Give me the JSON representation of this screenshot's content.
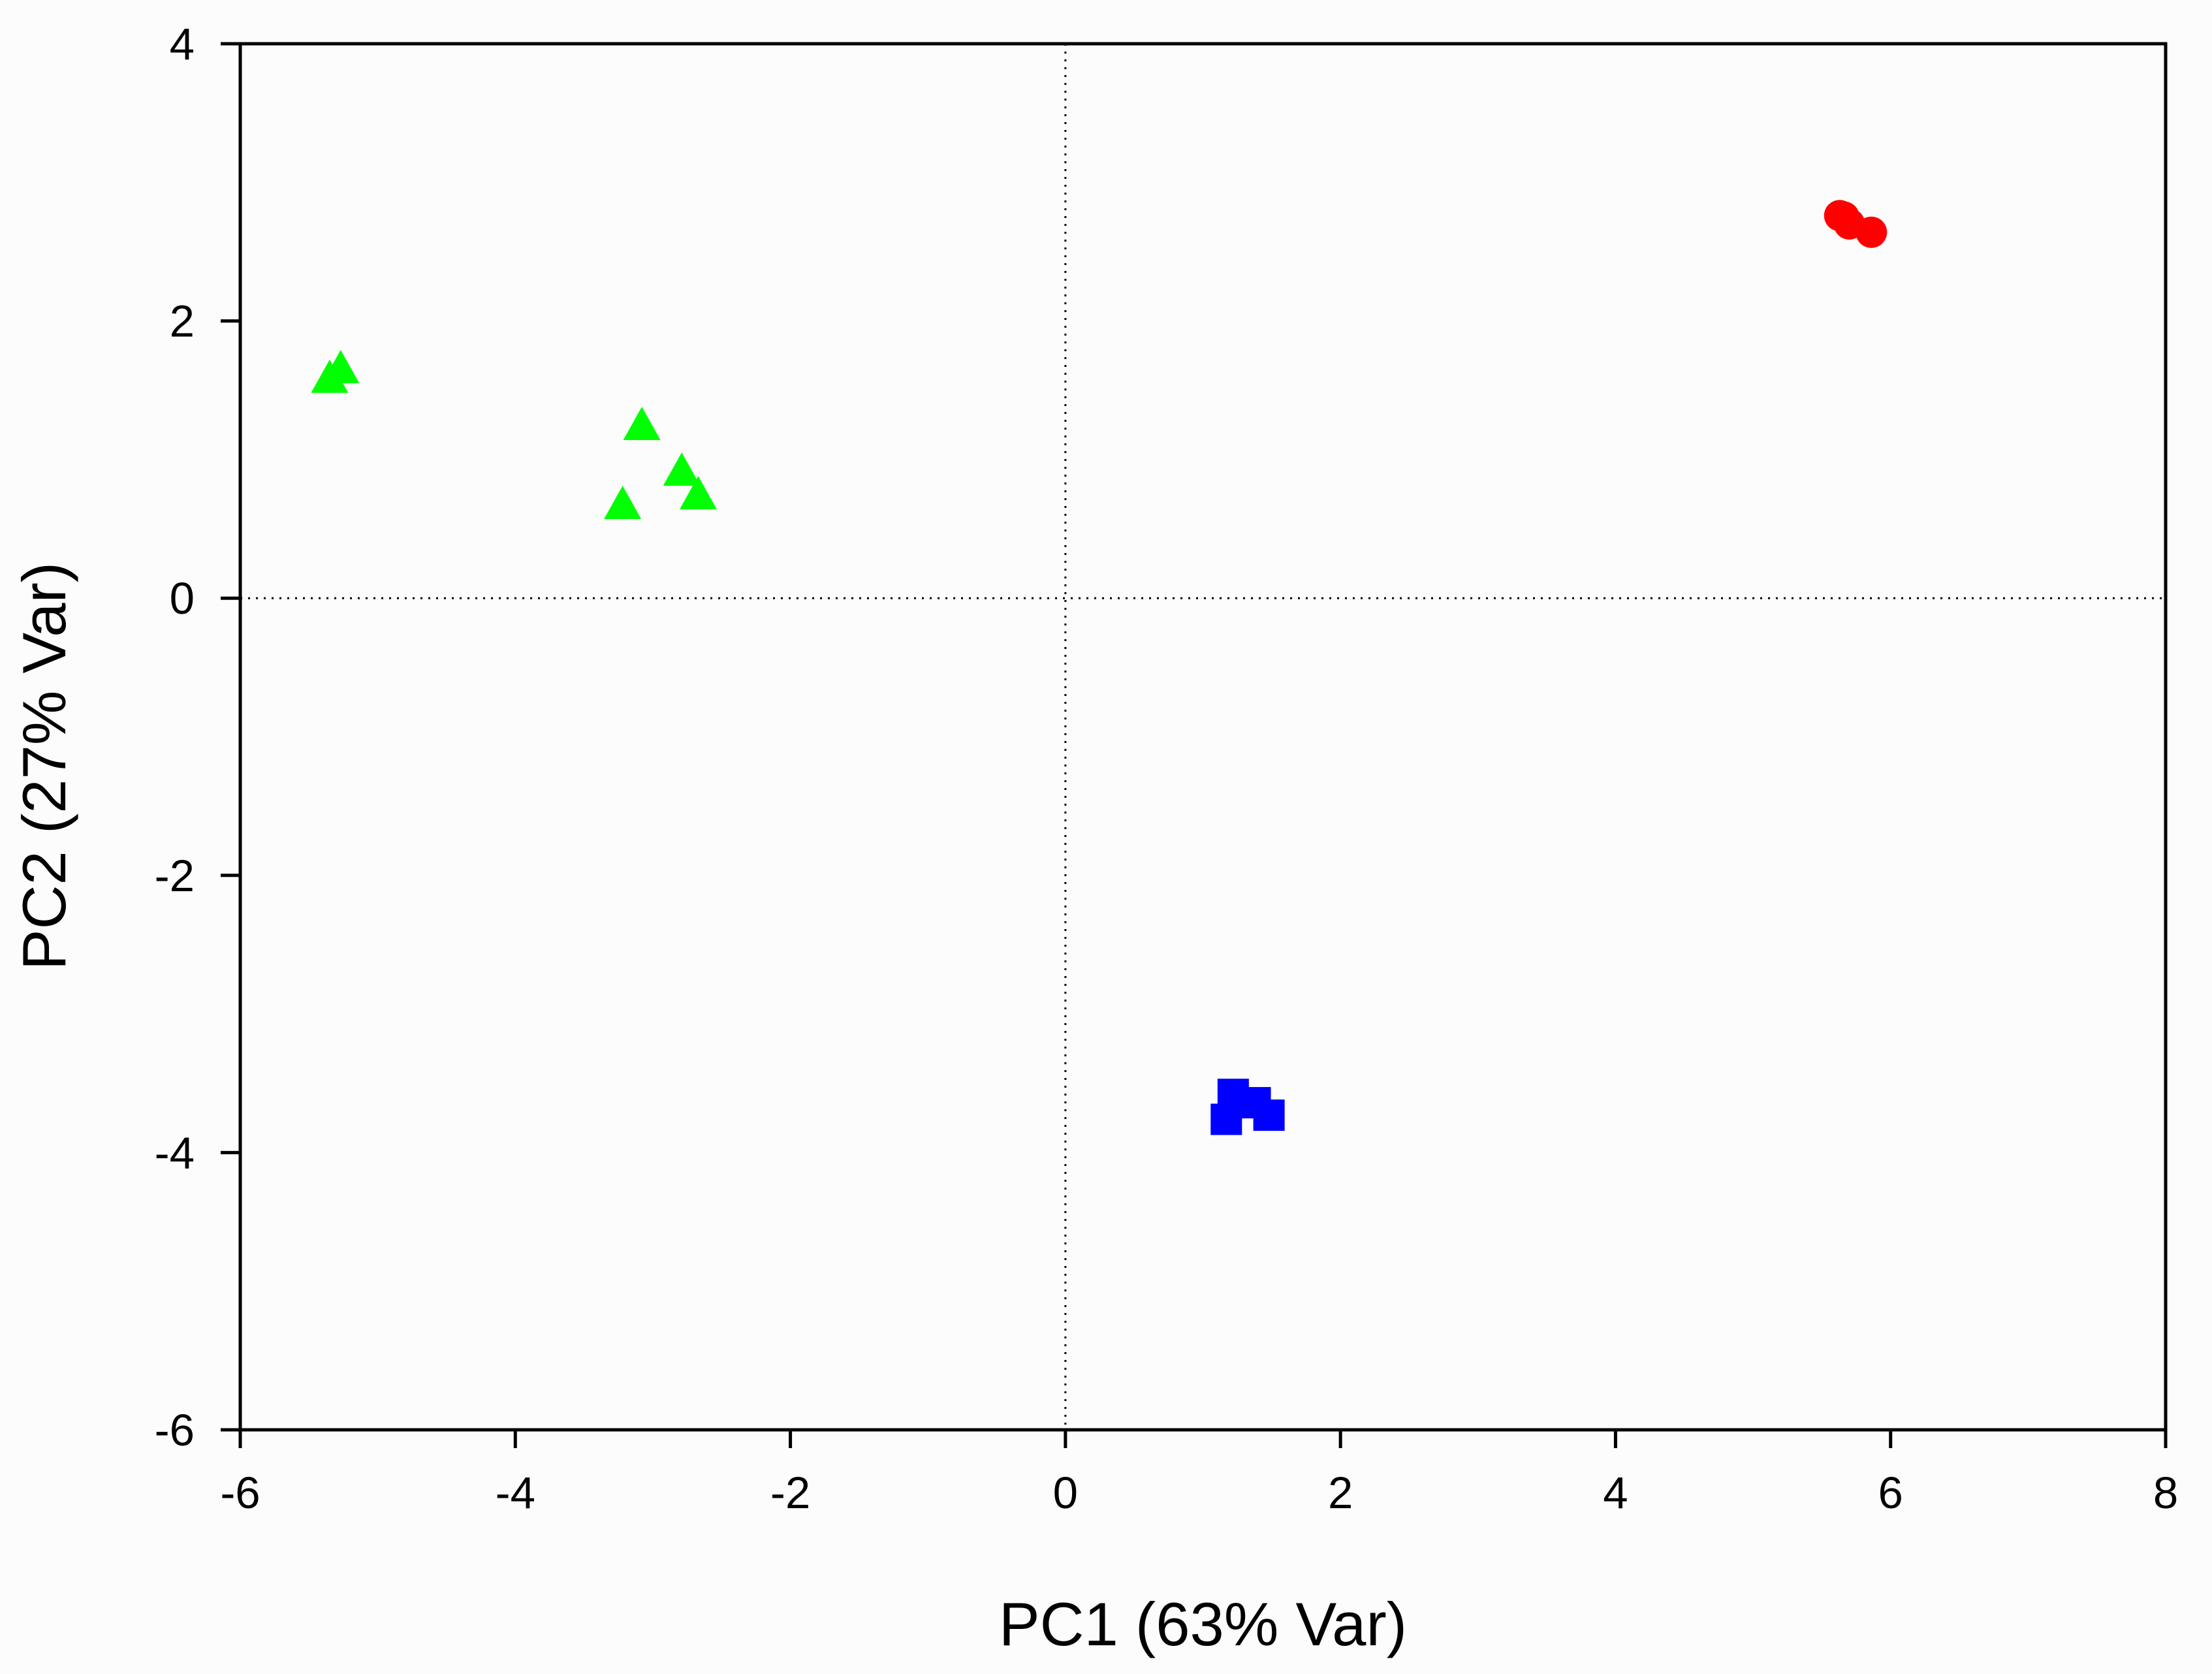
{
  "chart_data": {
    "type": "scatter",
    "title": "",
    "xlabel": "PC1 (63% Var)",
    "ylabel": "PC2 (27% Var)",
    "xlim": [
      -6,
      8
    ],
    "ylim": [
      -6,
      4
    ],
    "xticks": [
      -6,
      -4,
      -2,
      0,
      2,
      4,
      6,
      8
    ],
    "yticks": [
      -6,
      -4,
      -2,
      0,
      2,
      4
    ],
    "xtick_labels": [
      "-6",
      "-4",
      "-2",
      "0",
      "2",
      "4",
      "6",
      "8"
    ],
    "ytick_labels": [
      "-6",
      "-4",
      "-2",
      "0",
      "2",
      "4"
    ],
    "reference_lines": {
      "x": 0,
      "y": 0,
      "style": "dotted"
    },
    "grid": false,
    "legend": false,
    "series": [
      {
        "marker": "circle",
        "color": "#ff0000",
        "points": [
          {
            "x": 5.63,
            "y": 2.76
          },
          {
            "x": 5.66,
            "y": 2.75
          },
          {
            "x": 5.7,
            "y": 2.7
          },
          {
            "x": 5.86,
            "y": 2.64
          }
        ]
      },
      {
        "marker": "triangle",
        "color": "#00ff00",
        "points": [
          {
            "x": -5.35,
            "y": 1.58
          },
          {
            "x": -5.27,
            "y": 1.65
          },
          {
            "x": -3.08,
            "y": 1.24
          },
          {
            "x": -2.79,
            "y": 0.91
          },
          {
            "x": -2.67,
            "y": 0.74
          },
          {
            "x": -3.22,
            "y": 0.67
          }
        ]
      },
      {
        "marker": "square",
        "color": "#0000ff",
        "points": [
          {
            "x": 1.17,
            "y": -3.76
          },
          {
            "x": 1.22,
            "y": -3.58
          },
          {
            "x": 1.38,
            "y": -3.64
          },
          {
            "x": 1.48,
            "y": -3.73
          }
        ]
      }
    ]
  }
}
